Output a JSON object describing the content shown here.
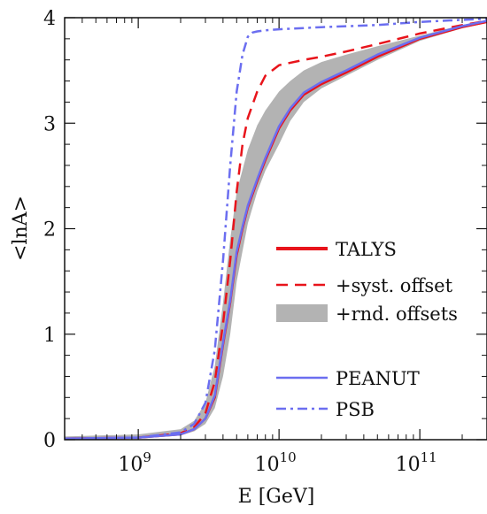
{
  "chart_data": {
    "type": "line",
    "xlabel": "E [GeV]",
    "ylabel": "<lnA>",
    "xscale": "log",
    "xlim": [
      300000000.0,
      300000000000.0
    ],
    "ylim": [
      0,
      4
    ],
    "grid": false,
    "legend_position": "center-right",
    "x_ticks": [
      {
        "value": 1000000000.0,
        "base": "10",
        "exp": "9"
      },
      {
        "value": 10000000000.0,
        "base": "10",
        "exp": "10"
      },
      {
        "value": 100000000000.0,
        "base": "10",
        "exp": "11"
      }
    ],
    "y_ticks": [
      {
        "value": 0,
        "label": "0"
      },
      {
        "value": 1,
        "label": "1"
      },
      {
        "value": 2,
        "label": "2"
      },
      {
        "value": 3,
        "label": "3"
      },
      {
        "value": 4,
        "label": "4"
      }
    ],
    "series": [
      {
        "name": "+rnd. offsets",
        "style": "band",
        "color": "#b3b3b3",
        "x": [
          300000000.0,
          1000000000.0,
          2000000000.0,
          2500000000.0,
          3000000000.0,
          3500000000.0,
          4000000000.0,
          4500000000.0,
          5000000000.0,
          6000000000.0,
          7000000000.0,
          8000000000.0,
          10000000000.0,
          12000000000.0,
          15000000000.0,
          20000000000.0,
          30000000000.0,
          50000000000.0,
          100000000000.0,
          200000000000.0,
          300000000000.0
        ],
        "lower": [
          0.0,
          0.02,
          0.04,
          0.08,
          0.15,
          0.3,
          0.6,
          1.0,
          1.5,
          2.05,
          2.35,
          2.55,
          2.8,
          3.02,
          3.2,
          3.33,
          3.45,
          3.6,
          3.78,
          3.9,
          3.95
        ],
        "upper": [
          0.03,
          0.05,
          0.1,
          0.18,
          0.35,
          0.7,
          1.3,
          1.9,
          2.35,
          2.75,
          2.98,
          3.12,
          3.3,
          3.4,
          3.5,
          3.58,
          3.65,
          3.73,
          3.83,
          3.93,
          3.98
        ]
      },
      {
        "name": "TALYS",
        "style": "solid",
        "color": "#e8141b",
        "x": [
          300000000.0,
          1000000000.0,
          2000000000.0,
          2500000000.0,
          3000000000.0,
          3500000000.0,
          4000000000.0,
          4500000000.0,
          5000000000.0,
          5500000000.0,
          6000000000.0,
          7000000000.0,
          8000000000.0,
          10000000000.0,
          12000000000.0,
          15000000000.0,
          20000000000.0,
          30000000000.0,
          50000000000.0,
          100000000000.0,
          200000000000.0,
          300000000000.0
        ],
        "y": [
          0.01,
          0.02,
          0.05,
          0.1,
          0.2,
          0.4,
          0.9,
          1.3,
          1.75,
          2.0,
          2.2,
          2.45,
          2.65,
          2.95,
          3.12,
          3.27,
          3.37,
          3.48,
          3.63,
          3.8,
          3.91,
          3.96
        ]
      },
      {
        "name": "+syst. offset",
        "style": "dashed",
        "color": "#e8141b",
        "x": [
          300000000.0,
          1000000000.0,
          2000000000.0,
          2500000000.0,
          3000000000.0,
          3500000000.0,
          4000000000.0,
          4500000000.0,
          5000000000.0,
          5500000000.0,
          6000000000.0,
          7000000000.0,
          8000000000.0,
          10000000000.0,
          15000000000.0,
          20000000000.0,
          30000000000.0,
          50000000000.0,
          100000000000.0,
          200000000000.0,
          300000000000.0
        ],
        "y": [
          0.01,
          0.02,
          0.06,
          0.12,
          0.25,
          0.55,
          1.1,
          1.7,
          2.35,
          2.8,
          3.05,
          3.3,
          3.45,
          3.55,
          3.6,
          3.63,
          3.68,
          3.75,
          3.85,
          3.93,
          3.97
        ]
      },
      {
        "name": "PEANUT",
        "style": "solid",
        "color": "#6b6ef0",
        "x": [
          300000000.0,
          1000000000.0,
          2000000000.0,
          2500000000.0,
          3000000000.0,
          3500000000.0,
          4000000000.0,
          4500000000.0,
          5000000000.0,
          5500000000.0,
          6000000000.0,
          7000000000.0,
          8000000000.0,
          10000000000.0,
          12000000000.0,
          15000000000.0,
          20000000000.0,
          30000000000.0,
          50000000000.0,
          100000000000.0,
          200000000000.0,
          300000000000.0
        ],
        "y": [
          0.01,
          0.02,
          0.05,
          0.1,
          0.2,
          0.42,
          0.92,
          1.32,
          1.78,
          2.02,
          2.22,
          2.47,
          2.67,
          2.97,
          3.14,
          3.29,
          3.39,
          3.5,
          3.65,
          3.81,
          3.92,
          3.97
        ]
      },
      {
        "name": "PSB",
        "style": "dashdot",
        "color": "#6b6ef0",
        "x": [
          300000000.0,
          1000000000.0,
          2000000000.0,
          2500000000.0,
          3000000000.0,
          3500000000.0,
          4000000000.0,
          4500000000.0,
          5000000000.0,
          5500000000.0,
          6000000000.0,
          6500000000.0,
          7000000000.0,
          8000000000.0,
          10000000000.0,
          20000000000.0,
          50000000000.0,
          100000000000.0,
          200000000000.0,
          300000000000.0
        ],
        "y": [
          0.01,
          0.02,
          0.07,
          0.15,
          0.35,
          0.85,
          1.7,
          2.6,
          3.3,
          3.65,
          3.82,
          3.86,
          3.87,
          3.88,
          3.89,
          3.91,
          3.93,
          3.96,
          3.98,
          3.99
        ]
      }
    ],
    "legend": [
      {
        "label": "TALYS",
        "style": "solid-thick",
        "color": "#e8141b"
      },
      {
        "label": "+syst. offset",
        "style": "dashed",
        "color": "#e8141b"
      },
      {
        "label": "+rnd. offsets",
        "style": "band",
        "color": "#b3b3b3"
      },
      {
        "label": "PEANUT",
        "style": "solid",
        "color": "#6b6ef0"
      },
      {
        "label": "PSB",
        "style": "dashdot",
        "color": "#6b6ef0"
      }
    ]
  }
}
